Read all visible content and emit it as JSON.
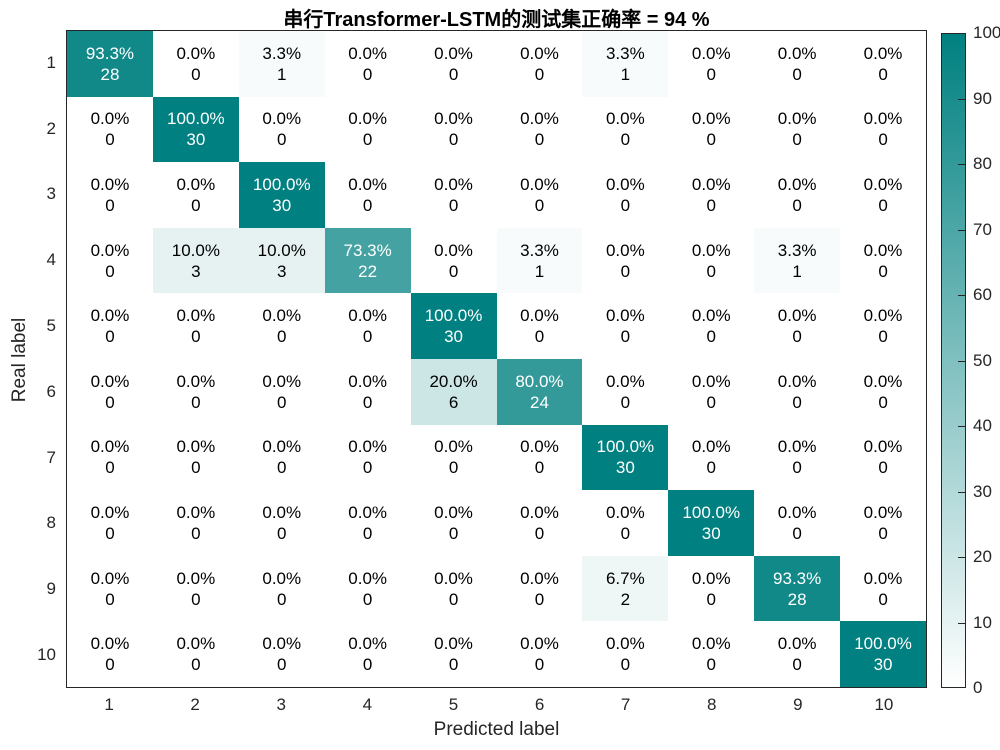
{
  "chart_data": {
    "type": "heatmap",
    "subtype": "confusion-matrix",
    "title": "串行Transformer-LSTM的测试集正确率 = 94 %",
    "xlabel": "Predicted label",
    "ylabel": "Real label",
    "x_tick_labels": [
      "1",
      "2",
      "3",
      "4",
      "5",
      "6",
      "7",
      "8",
      "9",
      "10"
    ],
    "y_tick_labels": [
      "1",
      "2",
      "3",
      "4",
      "5",
      "6",
      "7",
      "8",
      "9",
      "10"
    ],
    "cell_percent": [
      [
        93.3,
        0.0,
        3.3,
        0.0,
        0.0,
        0.0,
        3.3,
        0.0,
        0.0,
        0.0
      ],
      [
        0.0,
        100.0,
        0.0,
        0.0,
        0.0,
        0.0,
        0.0,
        0.0,
        0.0,
        0.0
      ],
      [
        0.0,
        0.0,
        100.0,
        0.0,
        0.0,
        0.0,
        0.0,
        0.0,
        0.0,
        0.0
      ],
      [
        0.0,
        10.0,
        10.0,
        73.3,
        0.0,
        3.3,
        0.0,
        0.0,
        3.3,
        0.0
      ],
      [
        0.0,
        0.0,
        0.0,
        0.0,
        100.0,
        0.0,
        0.0,
        0.0,
        0.0,
        0.0
      ],
      [
        0.0,
        0.0,
        0.0,
        0.0,
        20.0,
        80.0,
        0.0,
        0.0,
        0.0,
        0.0
      ],
      [
        0.0,
        0.0,
        0.0,
        0.0,
        0.0,
        0.0,
        100.0,
        0.0,
        0.0,
        0.0
      ],
      [
        0.0,
        0.0,
        0.0,
        0.0,
        0.0,
        0.0,
        0.0,
        100.0,
        0.0,
        0.0
      ],
      [
        0.0,
        0.0,
        0.0,
        0.0,
        0.0,
        0.0,
        6.7,
        0.0,
        93.3,
        0.0
      ],
      [
        0.0,
        0.0,
        0.0,
        0.0,
        0.0,
        0.0,
        0.0,
        0.0,
        0.0,
        100.0
      ]
    ],
    "cell_count": [
      [
        28,
        0,
        1,
        0,
        0,
        0,
        1,
        0,
        0,
        0
      ],
      [
        0,
        30,
        0,
        0,
        0,
        0,
        0,
        0,
        0,
        0
      ],
      [
        0,
        0,
        30,
        0,
        0,
        0,
        0,
        0,
        0,
        0
      ],
      [
        0,
        3,
        3,
        22,
        0,
        1,
        0,
        0,
        1,
        0
      ],
      [
        0,
        0,
        0,
        0,
        30,
        0,
        0,
        0,
        0,
        0
      ],
      [
        0,
        0,
        0,
        0,
        6,
        24,
        0,
        0,
        0,
        0
      ],
      [
        0,
        0,
        0,
        0,
        0,
        0,
        30,
        0,
        0,
        0
      ],
      [
        0,
        0,
        0,
        0,
        0,
        0,
        0,
        30,
        0,
        0
      ],
      [
        0,
        0,
        0,
        0,
        0,
        0,
        2,
        0,
        28,
        0
      ],
      [
        0,
        0,
        0,
        0,
        0,
        0,
        0,
        0,
        0,
        30
      ]
    ],
    "colorbar": {
      "min": 0,
      "max": 100,
      "tick_labels": [
        "0",
        "10",
        "20",
        "30",
        "40",
        "50",
        "60",
        "70",
        "80",
        "90",
        "100"
      ],
      "color_low": "#ffffff",
      "color_high": "#008080",
      "position": "right"
    },
    "grid": false,
    "xlim": [
      1,
      10
    ],
    "ylim": [
      1,
      10
    ]
  }
}
